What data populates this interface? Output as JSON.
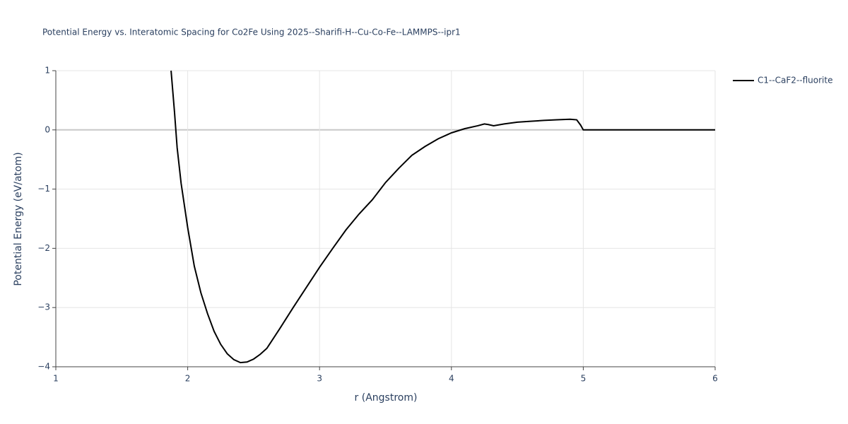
{
  "chart_data": {
    "type": "line",
    "title": "Potential Energy vs. Interatomic Spacing for Co2Fe Using 2025--Sharifi-H--Cu-Co-Fe--LAMMPS--ipr1",
    "x_label": "r (Angstrom)",
    "y_label": "Potential Energy (eV/atom)",
    "x": [
      1.874,
      1.9,
      1.92,
      1.95,
      2.0,
      2.05,
      2.1,
      2.15,
      2.2,
      2.25,
      2.3,
      2.35,
      2.4,
      2.45,
      2.5,
      2.55,
      2.6,
      2.7,
      2.8,
      2.9,
      3.0,
      3.1,
      3.2,
      3.3,
      3.4,
      3.5,
      3.6,
      3.7,
      3.8,
      3.9,
      4.0,
      4.1,
      4.2,
      4.25,
      4.28,
      4.32,
      4.4,
      4.5,
      4.6,
      4.7,
      4.8,
      4.9,
      4.95,
      4.98,
      5.0,
      5.5,
      6.0
    ],
    "series": [
      {
        "name": "C1--CaF2--fluorite",
        "color": "#000000",
        "values": [
          1.0,
          0.3,
          -0.3,
          -0.9,
          -1.65,
          -2.3,
          -2.75,
          -3.1,
          -3.4,
          -3.62,
          -3.78,
          -3.88,
          -3.93,
          -3.92,
          -3.87,
          -3.79,
          -3.69,
          -3.35,
          -3.0,
          -2.66,
          -2.32,
          -2.0,
          -1.69,
          -1.42,
          -1.18,
          -0.89,
          -0.65,
          -0.43,
          -0.28,
          -0.15,
          -0.05,
          0.02,
          0.07,
          0.1,
          0.09,
          0.07,
          0.1,
          0.13,
          0.145,
          0.16,
          0.17,
          0.18,
          0.17,
          0.08,
          0.0,
          0.0,
          0.0
        ]
      }
    ],
    "xlim": [
      1,
      6
    ],
    "ylim": [
      -4,
      1
    ],
    "xticks": [
      1,
      2,
      3,
      4,
      5,
      6
    ],
    "yticks": [
      {
        "value": -4,
        "label": "−4"
      },
      {
        "value": -3,
        "label": "−3"
      },
      {
        "value": -2,
        "label": "−2"
      },
      {
        "value": -1,
        "label": "−1"
      },
      0,
      1
    ],
    "grid": true,
    "legend": "right"
  }
}
